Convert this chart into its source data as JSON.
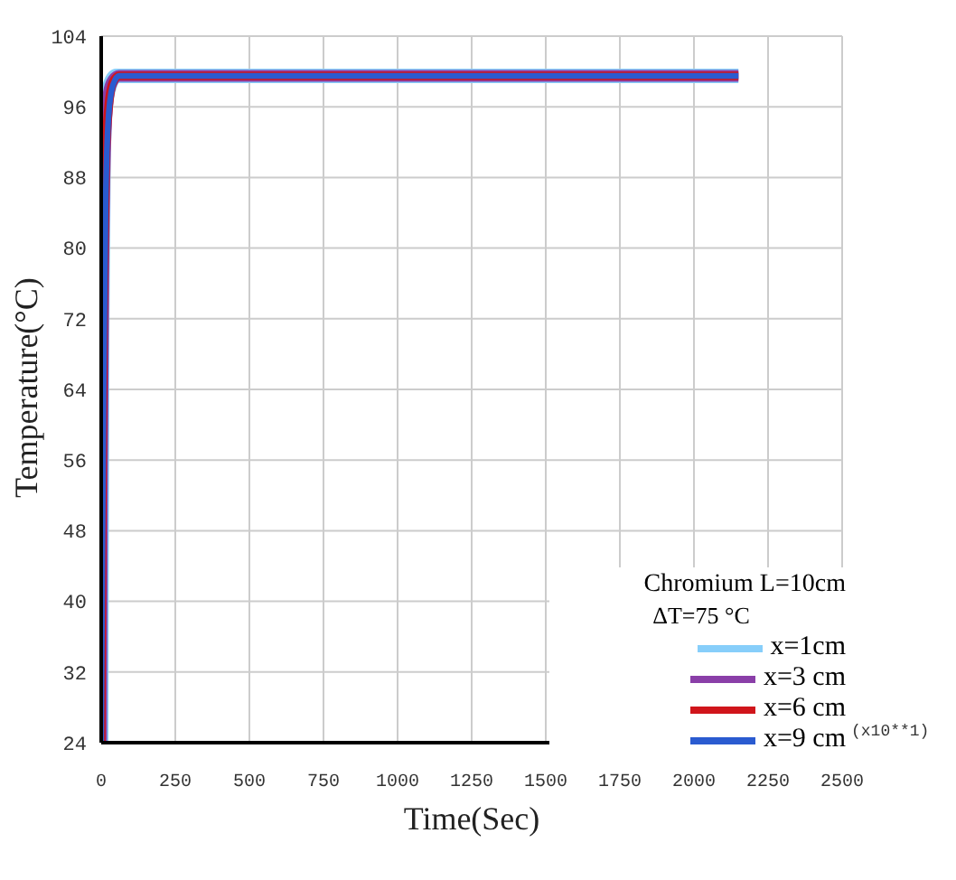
{
  "chart_data": {
    "type": "line",
    "xlabel": "Time(Sec)",
    "ylabel": "Temperature(°C)",
    "legend_title": "Chromium  L=10cm",
    "annotations": [
      "ΔT=75 °C",
      "(x10**1)"
    ],
    "series": [
      {
        "name": "x=1cm",
        "color": "#87cefa",
        "x": [
          0,
          3,
          8,
          15,
          30,
          50,
          2150
        ],
        "values": [
          24,
          70,
          90,
          96,
          98.5,
          99.5,
          99.5
        ]
      },
      {
        "name": "x=3 cm",
        "color": "#8a3fa8",
        "x": [
          0,
          3,
          8,
          15,
          25,
          40,
          60,
          2150
        ],
        "values": [
          24,
          55,
          80,
          93,
          97.5,
          99,
          99.5,
          99.5
        ]
      },
      {
        "name": "x=6 cm",
        "color": "#d0151b",
        "x": [
          0,
          3,
          8,
          15,
          25,
          40,
          60,
          2150
        ],
        "values": [
          24,
          48,
          72,
          90,
          96,
          98.8,
          99.5,
          99.5
        ]
      },
      {
        "name": "x=9 cm",
        "color": "#2a5bd0",
        "x": [
          0,
          3,
          8,
          15,
          25,
          40,
          60,
          2150
        ],
        "values": [
          24,
          40,
          64,
          85,
          95,
          98.5,
          99.5,
          99.5
        ]
      }
    ],
    "xlim": [
      0,
      2500
    ],
    "xticks": [
      0,
      250,
      500,
      750,
      1000,
      1250,
      1500,
      1750,
      2000,
      2250,
      2500
    ],
    "ylim": [
      24,
      104
    ],
    "yticks": [
      24,
      32,
      40,
      48,
      56,
      64,
      72,
      80,
      88,
      96,
      104
    ],
    "grid": true,
    "legend": "bottom right",
    "marker": "none",
    "line_style": "solid"
  }
}
